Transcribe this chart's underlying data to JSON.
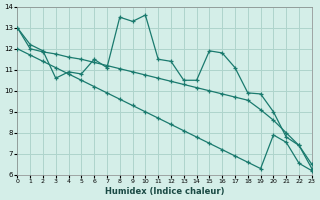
{
  "xlabel": "Humidex (Indice chaleur)",
  "xlim": [
    0,
    23
  ],
  "ylim": [
    6,
    14
  ],
  "yticks": [
    6,
    7,
    8,
    9,
    10,
    11,
    12,
    13,
    14
  ],
  "xticks": [
    0,
    1,
    2,
    3,
    4,
    5,
    6,
    7,
    8,
    9,
    10,
    11,
    12,
    13,
    14,
    15,
    16,
    17,
    18,
    19,
    20,
    21,
    22,
    23
  ],
  "background_color": "#d4eee8",
  "grid_color": "#aed4cc",
  "line_color": "#1a7a6e",
  "curve1_y": [
    13.0,
    12.2,
    11.9,
    10.6,
    10.9,
    10.8,
    11.5,
    11.1,
    13.5,
    13.3,
    13.6,
    11.5,
    11.4,
    10.5,
    10.5,
    11.9,
    11.8,
    11.1,
    9.9,
    9.85,
    9.0,
    7.8,
    7.4,
    6.5
  ],
  "curve2_y": [
    13.0,
    12.0,
    11.85,
    11.75,
    11.6,
    11.5,
    11.35,
    11.2,
    11.05,
    10.9,
    10.75,
    10.6,
    10.45,
    10.3,
    10.15,
    10.0,
    9.85,
    9.7,
    9.55,
    9.1,
    8.6,
    8.0,
    7.4,
    6.3
  ],
  "curve3_y": [
    12.0,
    11.7,
    11.4,
    11.1,
    10.8,
    10.5,
    10.2,
    9.9,
    9.6,
    9.3,
    9.0,
    8.7,
    8.4,
    8.1,
    7.8,
    7.5,
    7.2,
    6.9,
    6.6,
    6.3,
    7.9,
    7.55,
    6.55,
    6.2
  ]
}
